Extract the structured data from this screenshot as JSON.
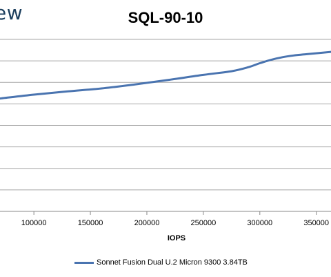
{
  "header": {
    "logo_text": "ew"
  },
  "chart_data": {
    "type": "line",
    "title": "SQL-90-10",
    "xlabel": "IOPS",
    "ylabel": "",
    "xlim": [
      70000,
      363000
    ],
    "ylim": [
      0,
      8
    ],
    "x_ticks": [
      100000,
      150000,
      200000,
      250000,
      300000,
      350000
    ],
    "x_tick_labels": [
      "100000",
      "150000",
      "200000",
      "250000",
      "300000",
      "350000"
    ],
    "y_gridlines": [
      0,
      1,
      2,
      3,
      4,
      5,
      6,
      7,
      8
    ],
    "grid": true,
    "legend_position": "bottom",
    "series": [
      {
        "name": "Sonnet Fusion Dual U.2 Micron 9300 3.84TB",
        "color": "#4a74b0",
        "x": [
          70000,
          100000,
          130000,
          160000,
          190000,
          220000,
          250000,
          275000,
          290000,
          300000,
          310000,
          320000,
          330000,
          345000,
          363000
        ],
        "y": [
          5.25,
          5.43,
          5.58,
          5.72,
          5.91,
          6.12,
          6.35,
          6.52,
          6.71,
          6.89,
          7.05,
          7.17,
          7.25,
          7.33,
          7.42
        ]
      }
    ]
  }
}
